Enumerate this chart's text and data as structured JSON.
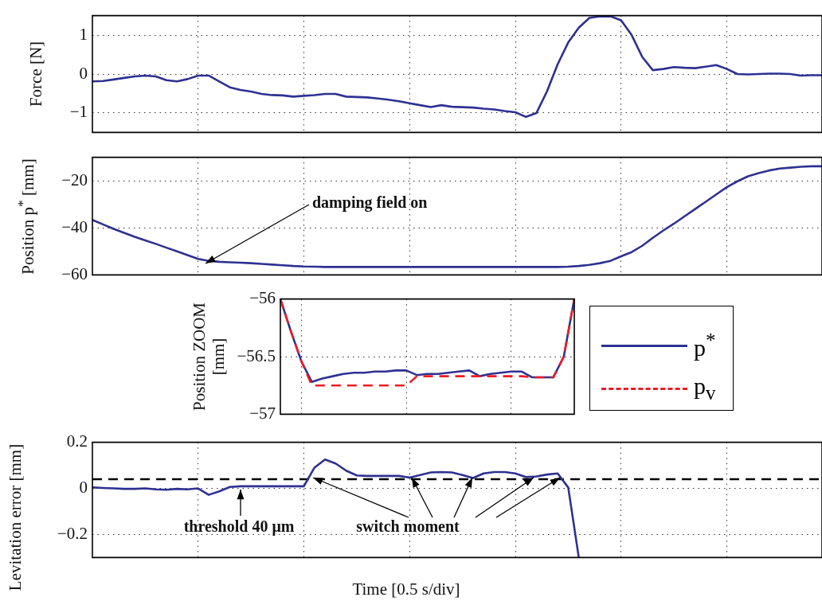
{
  "chart_data": [
    {
      "type": "line",
      "ylabel": "Force [N]",
      "categories": [
        null,
        null,
        null,
        null,
        null,
        null,
        null,
        null,
        null,
        null,
        null,
        null,
        null,
        null,
        null,
        null,
        null,
        null,
        null,
        null,
        null,
        null,
        null,
        null,
        null,
        null,
        null,
        null,
        null,
        null,
        null,
        null,
        null,
        null,
        null,
        null,
        null,
        null,
        null,
        null,
        null,
        null,
        null,
        null,
        null,
        null,
        null,
        null,
        null,
        null,
        null,
        null,
        null,
        null,
        null,
        null,
        null,
        null,
        null,
        null,
        null,
        null,
        null,
        null,
        null,
        null,
        null,
        null,
        null,
        null
      ],
      "series": [
        {
          "color": "#2e3192",
          "values": [
            -0.19,
            -0.18,
            -0.14,
            -0.1,
            -0.06,
            -0.04,
            -0.06,
            -0.16,
            -0.19,
            -0.13,
            -0.04,
            -0.04,
            -0.19,
            -0.34,
            -0.41,
            -0.45,
            -0.51,
            -0.54,
            -0.55,
            -0.58,
            -0.56,
            -0.54,
            -0.51,
            -0.51,
            -0.58,
            -0.59,
            -0.6,
            -0.63,
            -0.66,
            -0.7,
            -0.75,
            -0.8,
            -0.85,
            -0.8,
            -0.84,
            -0.85,
            -0.86,
            -0.89,
            -0.91,
            -0.95,
            -0.98,
            -1.1,
            -1,
            -0.44,
            0.25,
            0.81,
            1.19,
            1.44,
            1.48,
            1.48,
            1.38,
            1,
            0.44,
            0.1,
            0.13,
            0.18,
            0.16,
            0.15,
            0.19,
            0.23,
            0.13,
            0,
            -0.01,
            0,
            0.01,
            0.01,
            0,
            -0.04,
            -0.03,
            -0.03
          ]
        }
      ],
      "ylim": [
        -1.5,
        1.5
      ],
      "yticks": [
        -1,
        0,
        1
      ],
      "grid": true,
      "tick_labels": "y",
      "line_style": "solid",
      "marker": "none"
    },
    {
      "type": "line",
      "ylabel": "Position p$^{*}$ [mm]",
      "categories": [
        null,
        null,
        null,
        null,
        null,
        null,
        null,
        null,
        null,
        null,
        null,
        null,
        null,
        null,
        null,
        null,
        null,
        null,
        null,
        null,
        null,
        null,
        null,
        null,
        null,
        null,
        null,
        null,
        null,
        null,
        null,
        null,
        null,
        null,
        null,
        null,
        null,
        null,
        null,
        null,
        null,
        null,
        null,
        null,
        null,
        null,
        null,
        null,
        null,
        null,
        null,
        null,
        null,
        null,
        null,
        null,
        null,
        null,
        null,
        null,
        null,
        null,
        null,
        null,
        null,
        null,
        null,
        null,
        null,
        null
      ],
      "series": [
        {
          "color": "#2e3192",
          "values": [
            -36.6,
            -38.5,
            -40.4,
            -42.1,
            -43.8,
            -45.3,
            -46.8,
            -48.4,
            -50.0,
            -51.6,
            -53.2,
            -54.0,
            -54.4,
            -54.6,
            -54.8,
            -55.0,
            -55.3,
            -55.6,
            -55.9,
            -56.2,
            -56.4,
            -56.5,
            -56.6,
            -56.6,
            -56.6,
            -56.6,
            -56.6,
            -56.6,
            -56.6,
            -56.6,
            -56.6,
            -56.6,
            -56.6,
            -56.6,
            -56.6,
            -56.6,
            -56.6,
            -56.6,
            -56.6,
            -56.6,
            -56.6,
            -56.6,
            -56.6,
            -56.6,
            -56.6,
            -56.5,
            -56.2,
            -55.7,
            -55.0,
            -54.0,
            -52.1,
            -50.3,
            -47.6,
            -44.2,
            -41.1,
            -38.2,
            -35.1,
            -32.0,
            -28.9,
            -25.8,
            -22.7,
            -20.2,
            -18.1,
            -16.7,
            -15.6,
            -14.8,
            -14.4,
            -14.0,
            -13.8,
            -13.8
          ]
        }
      ],
      "ylim": [
        -60,
        -10
      ],
      "yticks": [
        -60,
        -40,
        -20
      ],
      "grid": true,
      "tick_labels": "y",
      "line_style": "solid",
      "marker": "none",
      "annotations": [
        "damping field on"
      ]
    },
    {
      "type": "line",
      "ylabel": "Position ZOOM [mm]",
      "categories": [
        null,
        null,
        null,
        null,
        null,
        null,
        null,
        null,
        null,
        null,
        null,
        null,
        null,
        null,
        null,
        null,
        null,
        null,
        null,
        null,
        null,
        null,
        null,
        null,
        null,
        null,
        null,
        null,
        null
      ],
      "series": [
        {
          "name": "p$^{*}$",
          "color": "#2e3192",
          "line_style": "solid",
          "values": [
            -56,
            -56.28,
            -56.54,
            -56.72,
            -56.69,
            -56.67,
            -56.65,
            -56.64,
            -56.64,
            -56.63,
            -56.63,
            -56.62,
            -56.62,
            -56.66,
            -56.65,
            -56.65,
            -56.64,
            -56.63,
            -56.62,
            -56.67,
            -56.65,
            -56.64,
            -56.63,
            -56.63,
            -56.68,
            -56.68,
            -56.68,
            -56.5,
            -56
          ]
        },
        {
          "name": "p$_{v}$",
          "color": "#ee1c25",
          "line_style": "dashed",
          "values": [
            -56,
            -56.28,
            -56.54,
            -56.75,
            -56.75,
            -56.75,
            -56.75,
            -56.75,
            -56.75,
            -56.75,
            -56.75,
            -56.75,
            -56.75,
            -56.67,
            -56.67,
            -56.67,
            -56.67,
            -56.67,
            -56.67,
            -56.67,
            -56.67,
            -56.67,
            -56.67,
            -56.67,
            -56.68,
            -56.68,
            -56.68,
            -56.5,
            -56
          ]
        }
      ],
      "ylim": [
        -57,
        -56
      ],
      "yticks": [
        -57,
        -56.5,
        -56
      ],
      "grid": true,
      "tick_labels": "y",
      "legend": "right",
      "marker": "none"
    },
    {
      "type": "line",
      "ylabel": "Levitation error [mm]",
      "xlabel": "Time [0.5 s/div]",
      "categories": [
        null,
        null,
        null,
        null,
        null,
        null,
        null,
        null,
        null,
        null,
        null,
        null,
        null,
        null,
        null,
        null,
        null,
        null,
        null,
        null,
        null,
        null,
        null,
        null,
        null,
        null,
        null,
        null,
        null,
        null,
        null,
        null,
        null,
        null,
        null,
        null,
        null,
        null,
        null,
        null,
        null,
        null,
        null,
        null,
        null,
        null,
        null,
        null,
        null,
        null,
        null,
        null,
        null,
        null,
        null,
        null,
        null,
        null,
        null,
        null,
        null,
        null,
        null,
        null,
        null,
        null,
        null,
        null,
        null,
        null
      ],
      "series": [
        {
          "color": "#2e3192",
          "values": [
            0.004,
            0.002,
            0,
            -0.002,
            -0.002,
            0,
            -0.004,
            -0.006,
            -0.002,
            -0.004,
            0,
            -0.028,
            -0.013,
            0.006,
            0.009,
            0.009,
            0.009,
            0.009,
            0.009,
            0.009,
            0.009,
            0.09,
            0.125,
            0.108,
            0.077,
            0.056,
            0.054,
            0.054,
            0.054,
            0.054,
            0.047,
            0.058,
            0.069,
            0.071,
            0.069,
            0.058,
            0.045,
            0.065,
            0.071,
            0.071,
            0.065,
            0.049,
            0.052,
            0.06,
            0.065,
            0.004,
            -0.3,
            null,
            null,
            null,
            null,
            null,
            null,
            null,
            null,
            null,
            null,
            null,
            null,
            null,
            null,
            null,
            null,
            null,
            null,
            null,
            null,
            null,
            null,
            null
          ]
        }
      ],
      "ylim": [
        -0.3,
        0.2
      ],
      "yticks": [
        -0.2,
        0,
        0.2
      ],
      "grid": true,
      "tick_labels": "y",
      "line_style": "solid",
      "marker": "none",
      "ref_lines": [
        {
          "axis": "y",
          "value": 0.04,
          "label": "threshold 40 μm",
          "color": "#000000",
          "line_style": "dashed"
        }
      ],
      "annotations": [
        "switch moment"
      ]
    }
  ]
}
